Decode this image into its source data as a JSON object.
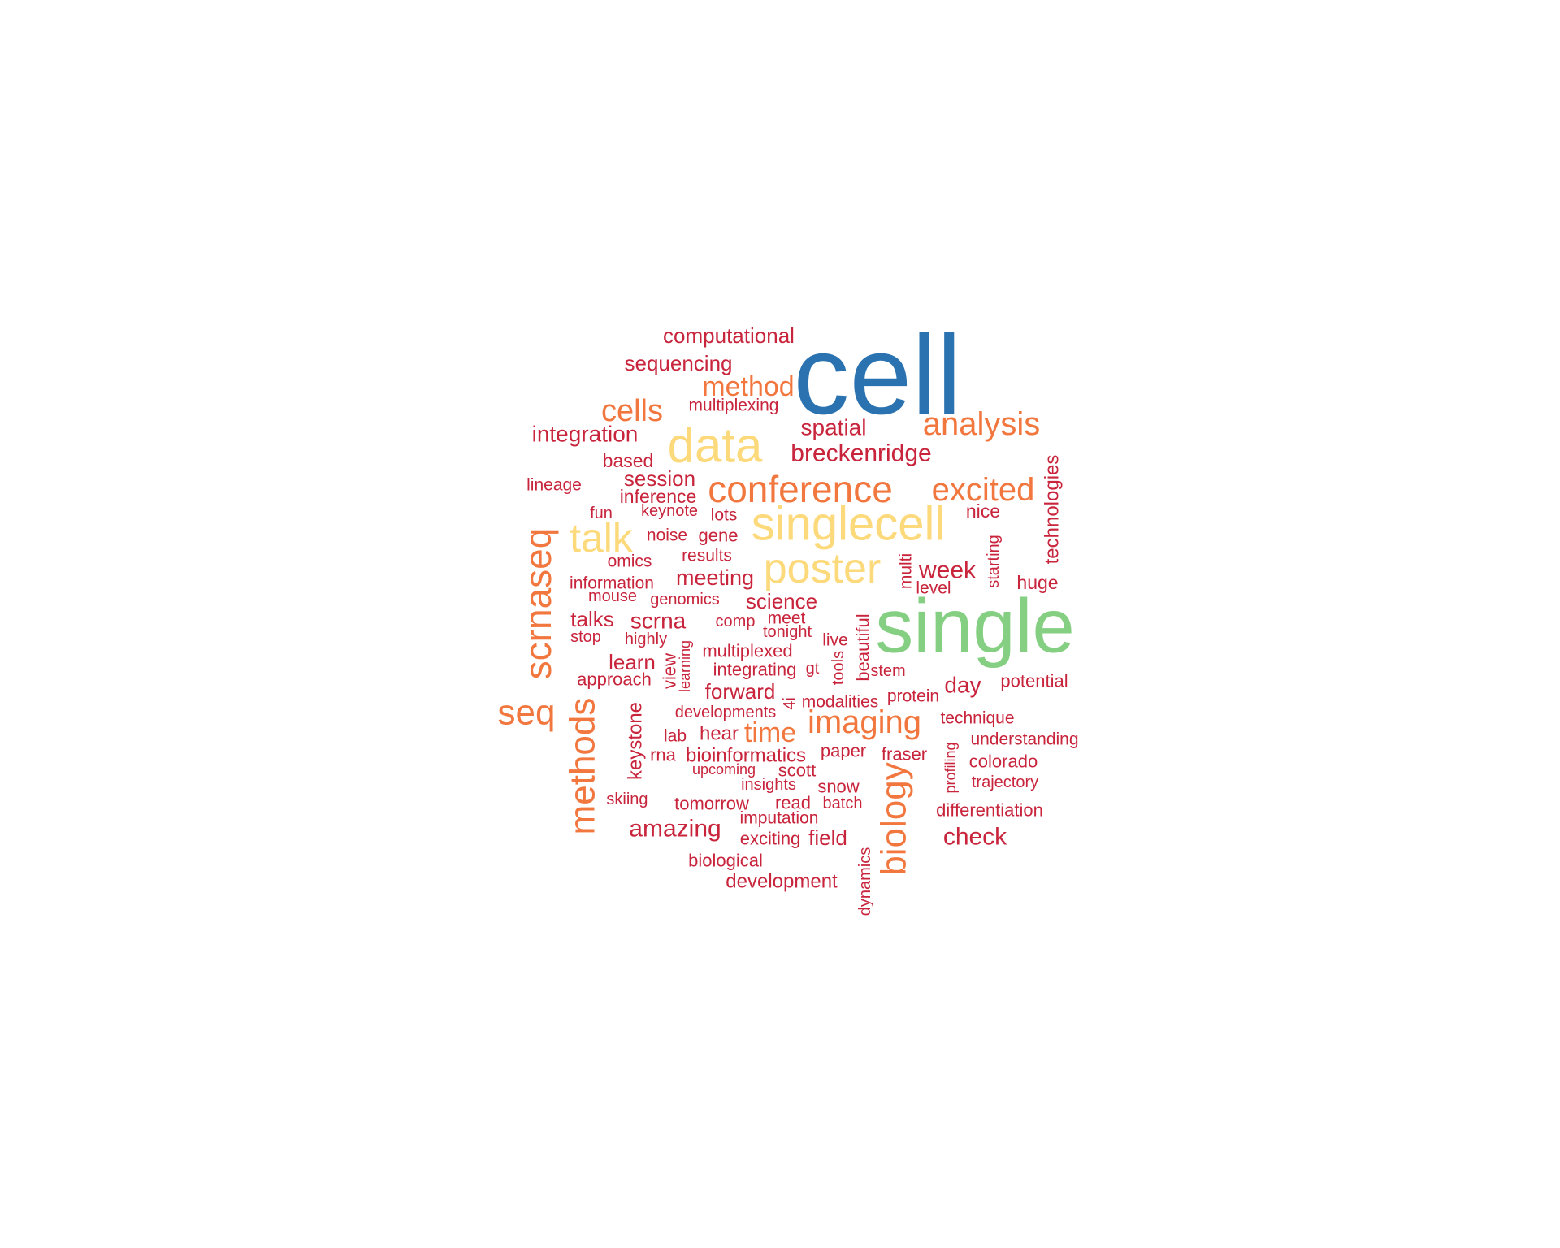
{
  "palette": {
    "dark_red": "#c8243c",
    "orange": "#f2773e",
    "yellow": "#fcd97a",
    "green": "#85cf82",
    "blue": "#2b72b0"
  },
  "words": [
    {
      "text": "cell",
      "color": "blue"
    },
    {
      "text": "single",
      "color": "green"
    },
    {
      "text": "data",
      "color": "yellow"
    },
    {
      "text": "singlecell",
      "color": "yellow"
    },
    {
      "text": "poster",
      "color": "yellow"
    },
    {
      "text": "talk",
      "color": "yellow"
    },
    {
      "text": "conference",
      "color": "orange"
    },
    {
      "text": "analysis",
      "color": "orange"
    },
    {
      "text": "excited",
      "color": "orange"
    },
    {
      "text": "cells",
      "color": "orange"
    },
    {
      "text": "method",
      "color": "orange"
    },
    {
      "text": "scrnaseq",
      "color": "orange"
    },
    {
      "text": "seq",
      "color": "orange"
    },
    {
      "text": "methods",
      "color": "orange"
    },
    {
      "text": "imaging",
      "color": "orange"
    },
    {
      "text": "biology",
      "color": "orange"
    },
    {
      "text": "time",
      "color": "orange"
    },
    {
      "text": "computational",
      "color": "dark_red"
    },
    {
      "text": "sequencing",
      "color": "dark_red"
    },
    {
      "text": "multiplexing",
      "color": "dark_red"
    },
    {
      "text": "integration",
      "color": "dark_red"
    },
    {
      "text": "spatial",
      "color": "dark_red"
    },
    {
      "text": "breckenridge",
      "color": "dark_red"
    },
    {
      "text": "based",
      "color": "dark_red"
    },
    {
      "text": "session",
      "color": "dark_red"
    },
    {
      "text": "lineage",
      "color": "dark_red"
    },
    {
      "text": "inference",
      "color": "dark_red"
    },
    {
      "text": "keynote",
      "color": "dark_red"
    },
    {
      "text": "fun",
      "color": "dark_red"
    },
    {
      "text": "lots",
      "color": "dark_red"
    },
    {
      "text": "nice",
      "color": "dark_red"
    },
    {
      "text": "technologies",
      "color": "dark_red"
    },
    {
      "text": "noise",
      "color": "dark_red"
    },
    {
      "text": "gene",
      "color": "dark_red"
    },
    {
      "text": "omics",
      "color": "dark_red"
    },
    {
      "text": "results",
      "color": "dark_red"
    },
    {
      "text": "multi",
      "color": "dark_red"
    },
    {
      "text": "week",
      "color": "dark_red"
    },
    {
      "text": "starting",
      "color": "dark_red"
    },
    {
      "text": "information",
      "color": "dark_red"
    },
    {
      "text": "meeting",
      "color": "dark_red"
    },
    {
      "text": "level",
      "color": "dark_red"
    },
    {
      "text": "huge",
      "color": "dark_red"
    },
    {
      "text": "mouse",
      "color": "dark_red"
    },
    {
      "text": "genomics",
      "color": "dark_red"
    },
    {
      "text": "science",
      "color": "dark_red"
    },
    {
      "text": "talks",
      "color": "dark_red"
    },
    {
      "text": "scrna",
      "color": "dark_red"
    },
    {
      "text": "comp",
      "color": "dark_red"
    },
    {
      "text": "meet",
      "color": "dark_red"
    },
    {
      "text": "beautiful",
      "color": "dark_red"
    },
    {
      "text": "stop",
      "color": "dark_red"
    },
    {
      "text": "highly",
      "color": "dark_red"
    },
    {
      "text": "tonight",
      "color": "dark_red"
    },
    {
      "text": "live",
      "color": "dark_red"
    },
    {
      "text": "learning",
      "color": "dark_red"
    },
    {
      "text": "multiplexed",
      "color": "dark_red"
    },
    {
      "text": "learn",
      "color": "dark_red"
    },
    {
      "text": "view",
      "color": "dark_red"
    },
    {
      "text": "tools",
      "color": "dark_red"
    },
    {
      "text": "stem",
      "color": "dark_red"
    },
    {
      "text": "integrating",
      "color": "dark_red"
    },
    {
      "text": "gt",
      "color": "dark_red"
    },
    {
      "text": "approach",
      "color": "dark_red"
    },
    {
      "text": "day",
      "color": "dark_red"
    },
    {
      "text": "potential",
      "color": "dark_red"
    },
    {
      "text": "forward",
      "color": "dark_red"
    },
    {
      "text": "4i",
      "color": "dark_red"
    },
    {
      "text": "modalities",
      "color": "dark_red"
    },
    {
      "text": "protein",
      "color": "dark_red"
    },
    {
      "text": "keystone",
      "color": "dark_red"
    },
    {
      "text": "developments",
      "color": "dark_red"
    },
    {
      "text": "technique",
      "color": "dark_red"
    },
    {
      "text": "lab",
      "color": "dark_red"
    },
    {
      "text": "hear",
      "color": "dark_red"
    },
    {
      "text": "understanding",
      "color": "dark_red"
    },
    {
      "text": "rna",
      "color": "dark_red"
    },
    {
      "text": "bioinformatics",
      "color": "dark_red"
    },
    {
      "text": "paper",
      "color": "dark_red"
    },
    {
      "text": "fraser",
      "color": "dark_red"
    },
    {
      "text": "profiling",
      "color": "dark_red"
    },
    {
      "text": "colorado",
      "color": "dark_red"
    },
    {
      "text": "upcoming",
      "color": "dark_red"
    },
    {
      "text": "scott",
      "color": "dark_red"
    },
    {
      "text": "insights",
      "color": "dark_red"
    },
    {
      "text": "snow",
      "color": "dark_red"
    },
    {
      "text": "trajectory",
      "color": "dark_red"
    },
    {
      "text": "skiing",
      "color": "dark_red"
    },
    {
      "text": "tomorrow",
      "color": "dark_red"
    },
    {
      "text": "read",
      "color": "dark_red"
    },
    {
      "text": "batch",
      "color": "dark_red"
    },
    {
      "text": "differentiation",
      "color": "dark_red"
    },
    {
      "text": "imputation",
      "color": "dark_red"
    },
    {
      "text": "amazing",
      "color": "dark_red"
    },
    {
      "text": "exciting",
      "color": "dark_red"
    },
    {
      "text": "field",
      "color": "dark_red"
    },
    {
      "text": "check",
      "color": "dark_red"
    },
    {
      "text": "biological",
      "color": "dark_red"
    },
    {
      "text": "dynamics",
      "color": "dark_red"
    },
    {
      "text": "development",
      "color": "dark_red"
    }
  ]
}
